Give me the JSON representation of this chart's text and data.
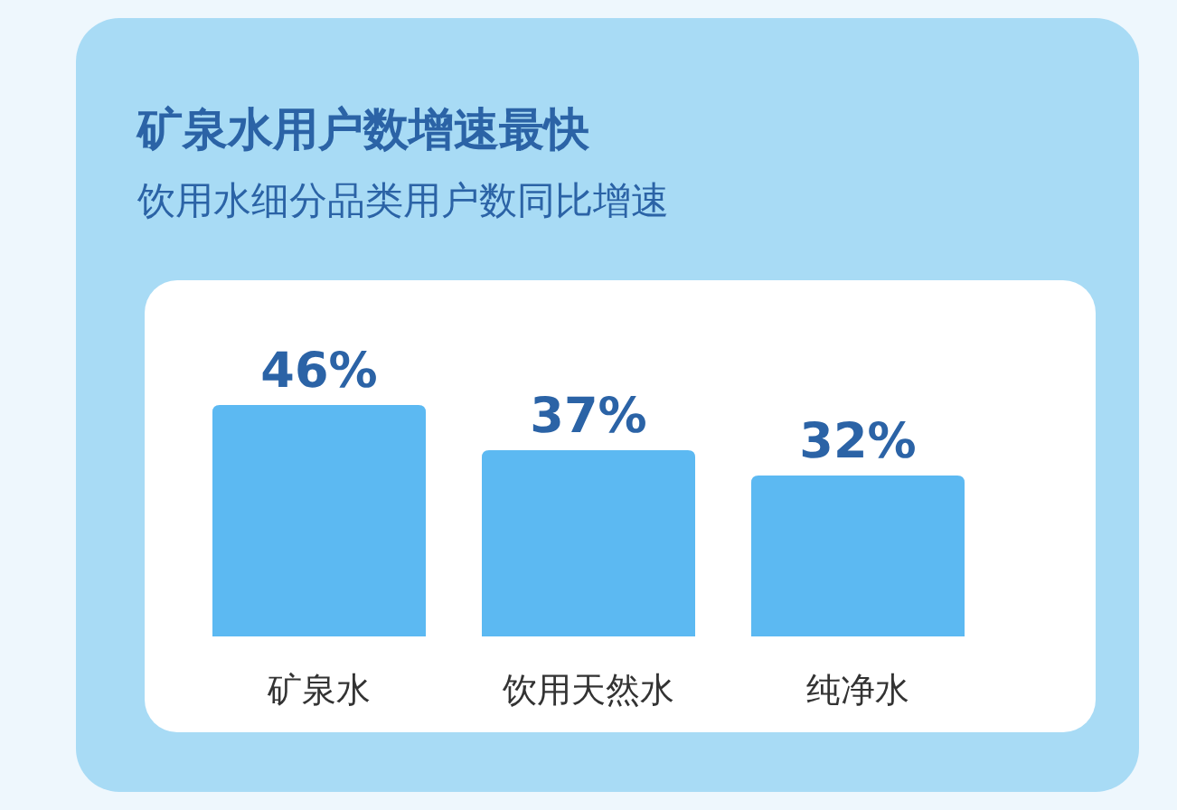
{
  "chart_data": {
    "type": "bar",
    "title": "矿泉水用户数增速最快",
    "subtitle": "饮用水细分品类用户数同比增速",
    "categories": [
      "矿泉水",
      "饮用天然水",
      "纯净水"
    ],
    "values": [
      46,
      37,
      32
    ],
    "value_labels": [
      "46%",
      "37%",
      "32%"
    ],
    "color": "#5cb9f2"
  }
}
